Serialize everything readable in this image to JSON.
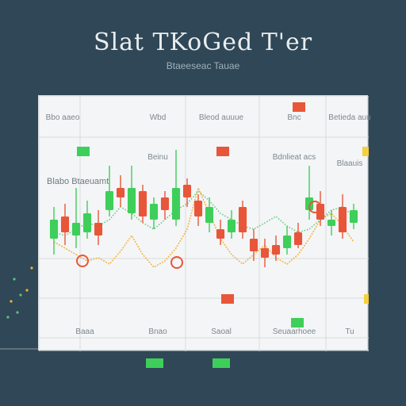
{
  "header": {
    "title": "Slat TKoGed T'er",
    "subtitle": "Btaeeseac Tauae"
  },
  "colors": {
    "background": "#2f4756",
    "panel": "#f4f5f6",
    "grid": "#d7dbde",
    "up": "#3ecf5a",
    "down": "#e8563a",
    "line_orange": "#f2b134",
    "line_green": "#56c77a"
  },
  "grid": {
    "top_labels": [
      "Bbo aaeo",
      "Wbd",
      "Bleod auuue",
      "Bnc",
      "Betieda auu"
    ],
    "second_labels": [
      "Beinu",
      "Bdnlieat acs",
      "Blaauis"
    ],
    "side_label": "Blabo Btaeuamt",
    "bottom_labels": [
      "Baaa",
      "Bnao",
      "Saoal",
      "Seuaarhoee",
      "Tu"
    ]
  },
  "chart_data": {
    "type": "candlestick",
    "title": "Slat TKoGed T'er",
    "subtitle": "Btaeeseac Tauae",
    "ylim": [
      0,
      100
    ],
    "candles": [
      {
        "x": 1,
        "open": 40,
        "close": 52,
        "high": 60,
        "low": 30
      },
      {
        "x": 2,
        "open": 54,
        "close": 44,
        "high": 62,
        "low": 36
      },
      {
        "x": 3,
        "open": 42,
        "close": 50,
        "high": 72,
        "low": 34
      },
      {
        "x": 4,
        "open": 44,
        "close": 56,
        "high": 64,
        "low": 40
      },
      {
        "x": 5,
        "open": 50,
        "close": 42,
        "high": 58,
        "low": 36
      },
      {
        "x": 6,
        "open": 58,
        "close": 70,
        "high": 86,
        "low": 54
      },
      {
        "x": 7,
        "open": 72,
        "close": 66,
        "high": 80,
        "low": 60
      },
      {
        "x": 8,
        "open": 56,
        "close": 72,
        "high": 86,
        "low": 52
      },
      {
        "x": 9,
        "open": 70,
        "close": 54,
        "high": 74,
        "low": 50
      },
      {
        "x": 10,
        "open": 52,
        "close": 62,
        "high": 66,
        "low": 46
      },
      {
        "x": 11,
        "open": 66,
        "close": 58,
        "high": 70,
        "low": 52
      },
      {
        "x": 12,
        "open": 52,
        "close": 72,
        "high": 96,
        "low": 48
      },
      {
        "x": 13,
        "open": 74,
        "close": 66,
        "high": 78,
        "low": 60
      },
      {
        "x": 14,
        "open": 64,
        "close": 54,
        "high": 68,
        "low": 48
      },
      {
        "x": 15,
        "open": 50,
        "close": 60,
        "high": 66,
        "low": 44
      },
      {
        "x": 16,
        "open": 46,
        "close": 40,
        "high": 52,
        "low": 36
      },
      {
        "x": 17,
        "open": 44,
        "close": 52,
        "high": 58,
        "low": 40
      },
      {
        "x": 18,
        "open": 60,
        "close": 44,
        "high": 64,
        "low": 40
      },
      {
        "x": 19,
        "open": 40,
        "close": 32,
        "high": 46,
        "low": 26
      },
      {
        "x": 20,
        "open": 34,
        "close": 28,
        "high": 40,
        "low": 22
      },
      {
        "x": 21,
        "open": 36,
        "close": 30,
        "high": 42,
        "low": 26
      },
      {
        "x": 22,
        "open": 34,
        "close": 42,
        "high": 48,
        "low": 30
      },
      {
        "x": 23,
        "open": 44,
        "close": 36,
        "high": 50,
        "low": 34
      },
      {
        "x": 24,
        "open": 58,
        "close": 66,
        "high": 86,
        "low": 52
      },
      {
        "x": 25,
        "open": 62,
        "close": 52,
        "high": 70,
        "low": 48
      },
      {
        "x": 26,
        "open": 48,
        "close": 52,
        "high": 58,
        "low": 42
      },
      {
        "x": 27,
        "open": 60,
        "close": 44,
        "high": 68,
        "low": 40
      },
      {
        "x": 28,
        "open": 50,
        "close": 58,
        "high": 62,
        "low": 46
      }
    ],
    "lines": [
      {
        "color": "orange",
        "values": [
          38,
          34,
          30,
          26,
          28,
          24,
          32,
          42,
          30,
          22,
          26,
          34,
          46,
          72,
          56,
          40,
          30,
          24,
          30,
          36,
          28,
          24,
          30,
          40,
          52,
          56,
          48,
          38
        ]
      },
      {
        "color": "green",
        "values": [
          44,
          42,
          46,
          50,
          48,
          52,
          60,
          56,
          50,
          46,
          52,
          58,
          62,
          70,
          64,
          56,
          52,
          48,
          46,
          50,
          54,
          48,
          44,
          46,
          52,
          58,
          60,
          54
        ]
      }
    ]
  }
}
